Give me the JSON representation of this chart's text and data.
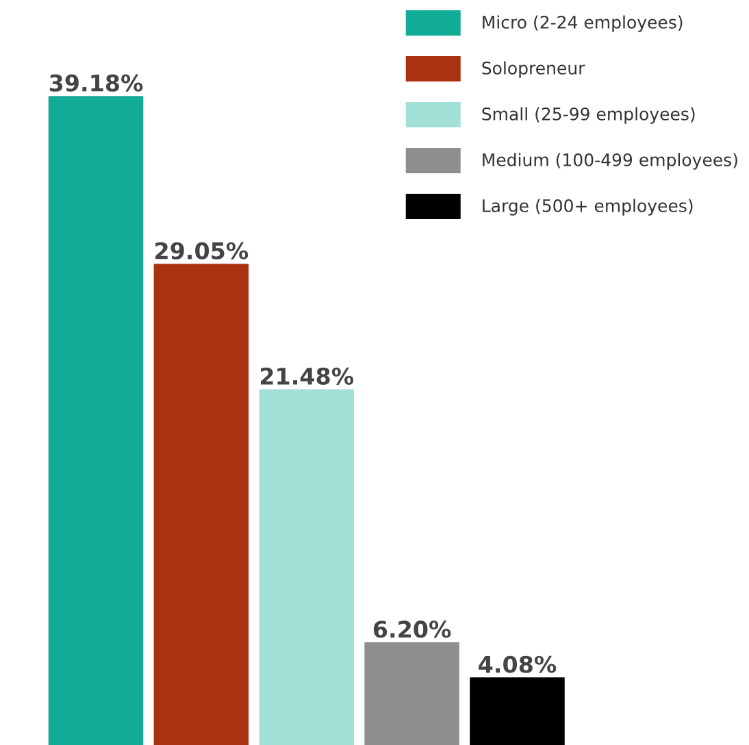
{
  "chart_data": {
    "type": "bar",
    "categories": [
      null,
      null,
      null,
      null,
      null
    ],
    "series": [
      {
        "name": "Micro (2-24 employees)",
        "color": "#12ab96",
        "values": [
          39.18,
          null,
          null,
          null,
          null
        ],
        "value_labels": [
          "39.18%",
          null,
          null,
          null,
          null
        ]
      },
      {
        "name": "Solopreneur",
        "color": "#ab3210",
        "values": [
          null,
          29.05,
          null,
          null,
          null
        ],
        "value_labels": [
          null,
          "29.05%",
          null,
          null,
          null
        ]
      },
      {
        "name": "Small (25-99 employees)",
        "color": "#a2dfd7",
        "values": [
          null,
          null,
          21.48,
          null,
          null
        ],
        "value_labels": [
          null,
          null,
          "21.48%",
          null,
          null
        ]
      },
      {
        "name": "Medium (100-499 employees)",
        "color": "#8e8e8e",
        "values": [
          null,
          null,
          null,
          6.2,
          null
        ],
        "value_labels": [
          null,
          null,
          null,
          "6.20%",
          null
        ]
      },
      {
        "name": "Large (500+ employees)",
        "color": "#000000",
        "values": [
          null,
          null,
          null,
          null,
          4.08
        ],
        "value_labels": [
          null,
          null,
          null,
          null,
          "4.08%"
        ]
      }
    ],
    "stacked": true,
    "legend": "top right",
    "grid": false,
    "tick_labels": false
  }
}
